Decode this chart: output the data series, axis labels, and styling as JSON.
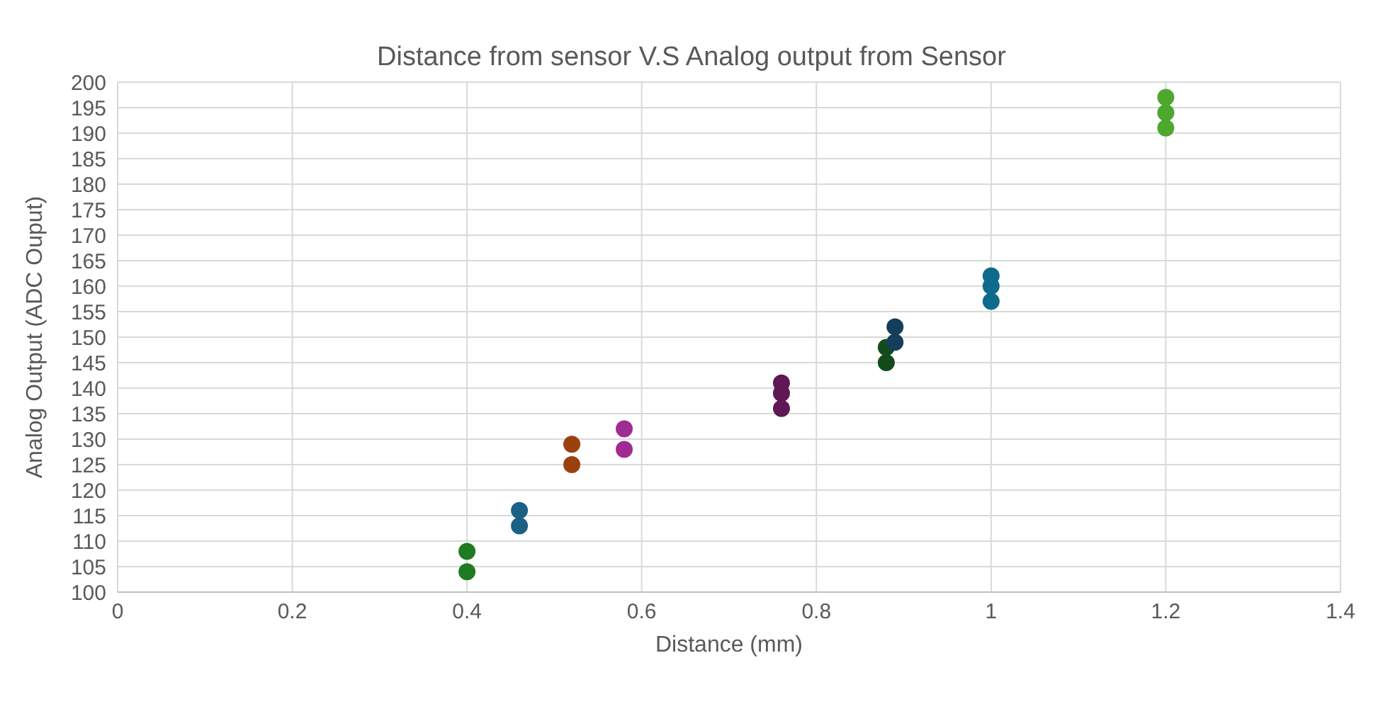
{
  "chart_data": {
    "type": "scatter",
    "title": "Distance from sensor V.S Analog output from Sensor",
    "xlabel": "Distance (mm)",
    "ylabel": "Analog Output (ADC Ouput)",
    "xlim": [
      0,
      1.4
    ],
    "xticks": [
      0,
      0.2,
      0.4,
      0.6,
      0.8,
      1,
      1.2,
      1.4
    ],
    "ylim": [
      100,
      200
    ],
    "yticks": [
      100,
      105,
      110,
      115,
      120,
      125,
      130,
      135,
      140,
      145,
      150,
      155,
      160,
      165,
      170,
      175,
      180,
      185,
      190,
      195,
      200
    ],
    "grid": true,
    "marker": "circle",
    "legend": false,
    "series": [
      {
        "color": "#1e7b22",
        "x": [
          0.4,
          0.4
        ],
        "values": [
          104,
          108
        ]
      },
      {
        "color": "#1a6185",
        "x": [
          0.46,
          0.46
        ],
        "values": [
          113,
          116
        ]
      },
      {
        "color": "#9b4110",
        "x": [
          0.52,
          0.52
        ],
        "values": [
          125,
          129
        ]
      },
      {
        "color": "#a02b93",
        "x": [
          0.58,
          0.58
        ],
        "values": [
          128,
          132
        ]
      },
      {
        "color": "#5f1854",
        "x": [
          0.76,
          0.76,
          0.76
        ],
        "values": [
          136,
          139,
          141
        ]
      },
      {
        "color": "#144b1c",
        "x": [
          0.88,
          0.88
        ],
        "values": [
          145,
          148
        ]
      },
      {
        "color": "#153e5c",
        "x": [
          0.89,
          0.89
        ],
        "values": [
          149,
          152
        ]
      },
      {
        "color": "#0e6b8c",
        "x": [
          1,
          1,
          1
        ],
        "values": [
          157,
          160,
          162
        ]
      },
      {
        "color": "#4ea72e",
        "x": [
          1.2,
          1.2,
          1.2
        ],
        "values": [
          191,
          194,
          197
        ]
      }
    ]
  }
}
